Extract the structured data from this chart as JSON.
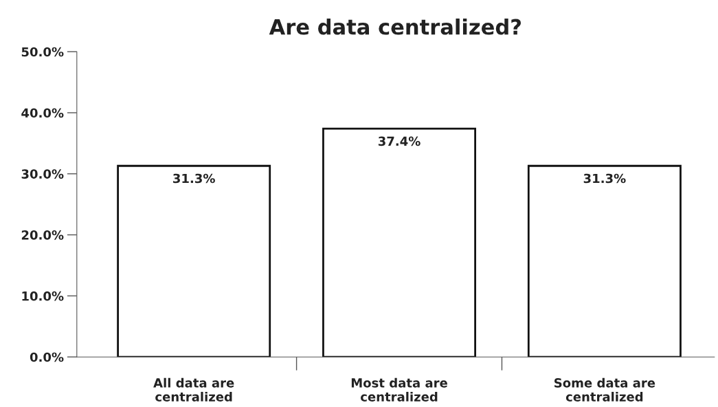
{
  "chart_data": {
    "type": "bar",
    "title": "Are data centralized?",
    "categories": [
      "All data are\ncentralized",
      "Most data are\ncentralized",
      "Some data are\ncentralized"
    ],
    "values": [
      31.3,
      37.4,
      31.3
    ],
    "value_labels": [
      "31.3%",
      "37.4%",
      "31.3%"
    ],
    "color": "#ffffff",
    "ylim": [
      0,
      50
    ],
    "yticks": [
      {
        "value": 0,
        "label": "0.0%"
      },
      {
        "value": 10,
        "label": "10.0%"
      },
      {
        "value": 20,
        "label": "20.0%"
      },
      {
        "value": 30,
        "label": "30.0%"
      },
      {
        "value": 40,
        "label": "40.0%"
      },
      {
        "value": 50,
        "label": "50.0%"
      }
    ],
    "grid": false,
    "legend": false
  }
}
